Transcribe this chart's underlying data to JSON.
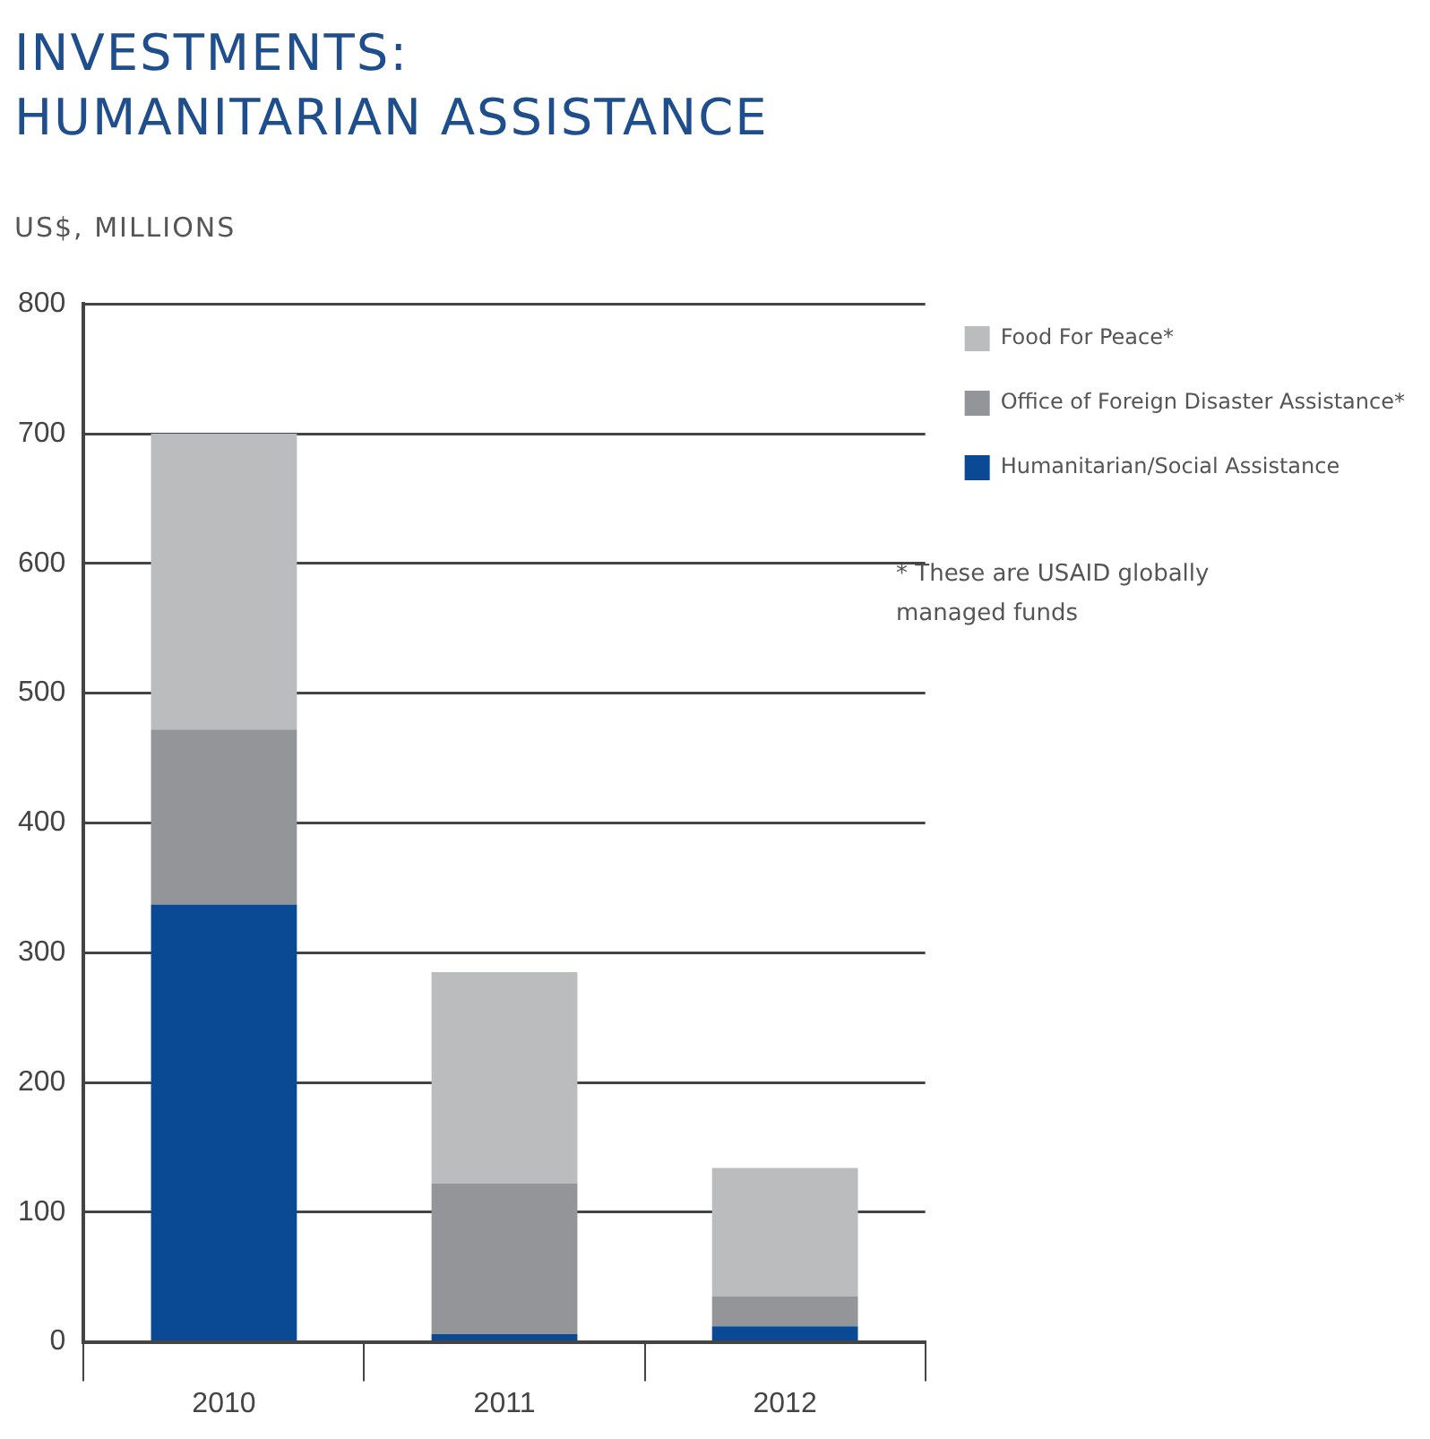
{
  "chart_data": {
    "type": "bar",
    "title": "INVESTMENTS:\nHUMANITARIAN ASSISTANCE",
    "ylabel": "US$, MILLIONS",
    "categories": [
      "2010",
      "2011",
      "2012"
    ],
    "stacked": true,
    "series": [
      {
        "name": "Humanitarian/Social Assistance",
        "color": "#0a4a94",
        "values": [
          337,
          6,
          12
        ]
      },
      {
        "name": "Office of Foreign Disaster Assistance*",
        "color": "#939598",
        "values": [
          135,
          116,
          23
        ]
      },
      {
        "name": "Food For Peace*",
        "color": "#bbbcbe",
        "values": [
          228,
          163,
          99
        ]
      }
    ],
    "ylim": [
      0,
      800
    ],
    "yticks": [
      0,
      100,
      200,
      300,
      400,
      500,
      600,
      700,
      800
    ],
    "grid": "y",
    "legend": "right",
    "annotations": [
      "* These are USAID globally managed funds"
    ]
  }
}
